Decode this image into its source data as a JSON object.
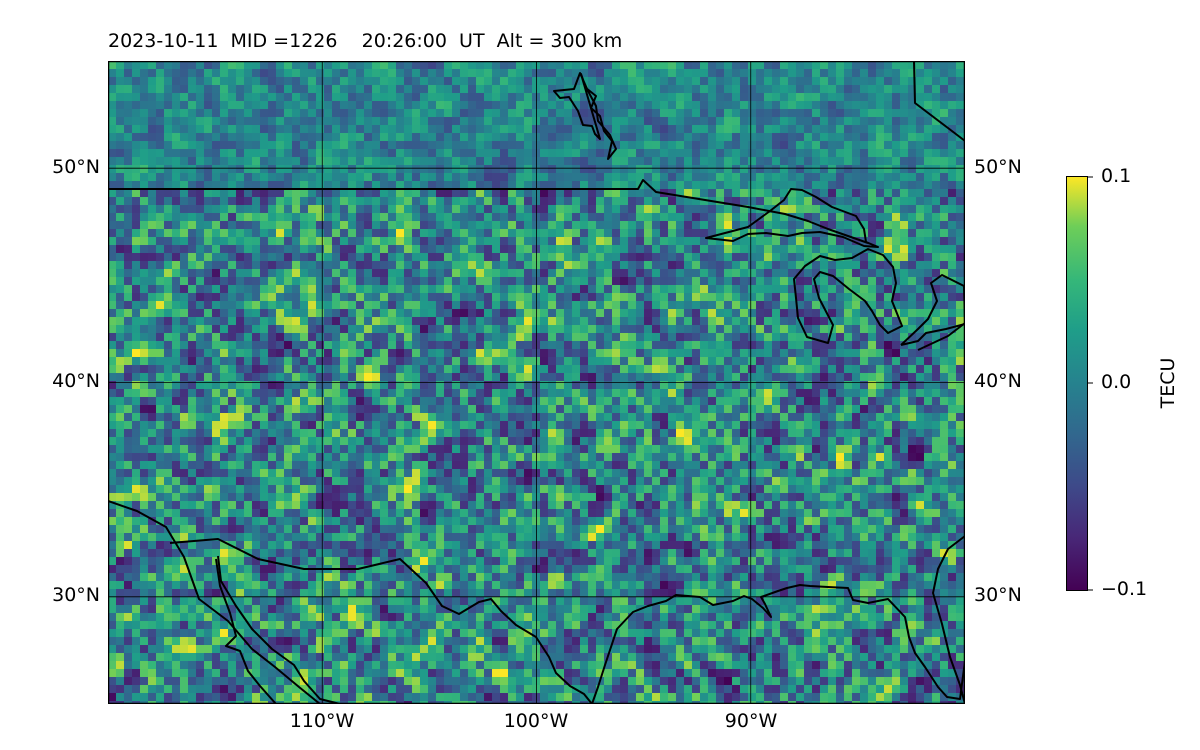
{
  "title": {
    "date": "2023-10-11",
    "mid": "MID =1226",
    "time": "20:26:00  UT",
    "altitude": "Alt = 300 km"
  },
  "map": {
    "lat_ticks": [
      "50°N",
      "40°N",
      "30°N"
    ],
    "lon_ticks": [
      "110°W",
      "100°W",
      "90°W"
    ],
    "lon_range": [
      -120,
      -80
    ],
    "lat_range": [
      25,
      55
    ],
    "grid": true
  },
  "colorbar": {
    "label": "TECU",
    "ticks": [
      "0.1",
      "0.0",
      "−0.1"
    ],
    "range": [
      -0.1,
      0.1
    ],
    "colormap": "viridis",
    "colors": [
      "#440154",
      "#3b528b",
      "#21918c",
      "#5ec962",
      "#fde725"
    ]
  },
  "colors": {
    "coastline": "#000000",
    "grid": "#000000",
    "background_mean": "#21918c"
  }
}
